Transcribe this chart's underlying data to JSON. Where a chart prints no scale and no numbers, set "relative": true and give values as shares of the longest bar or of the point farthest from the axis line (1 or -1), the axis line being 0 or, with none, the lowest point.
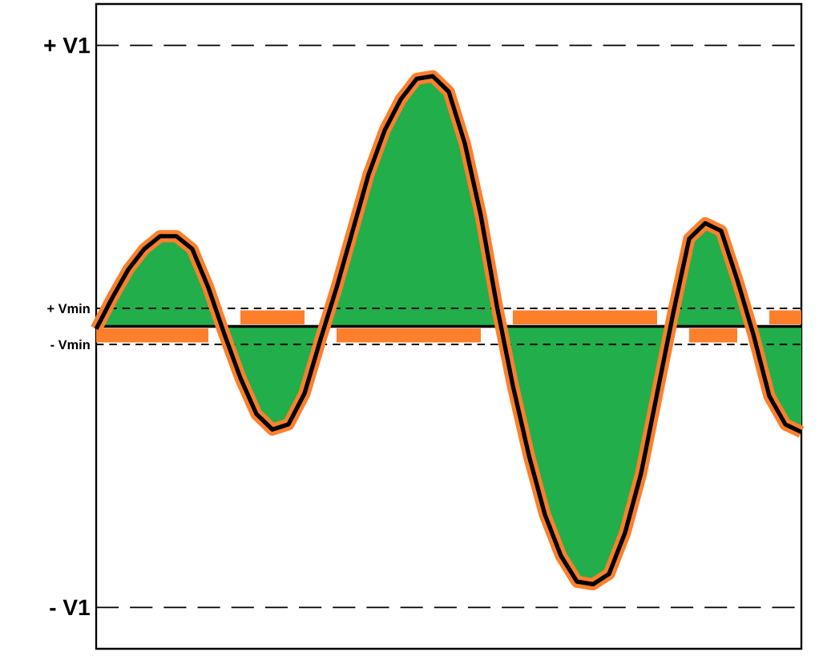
{
  "chart_data": {
    "type": "area",
    "relative": true,
    "categories": [
      null,
      null,
      null,
      null,
      null,
      null,
      null,
      null,
      null,
      null,
      null,
      null,
      null,
      null,
      null,
      null,
      null,
      null,
      null,
      null,
      null,
      null,
      null,
      null,
      null,
      null,
      null,
      null,
      null,
      null,
      null,
      null,
      null,
      null,
      null,
      null,
      null,
      null,
      null,
      null,
      null,
      null,
      null,
      null,
      null
    ],
    "series": [
      {
        "color": "#22ae4a",
        "values": [
          -0.01,
          0.11,
          0.22,
          0.3,
          0.35,
          0.35,
          0.3,
          0.15,
          -0.03,
          -0.2,
          -0.34,
          -0.4,
          -0.38,
          -0.26,
          -0.05,
          0.15,
          0.37,
          0.59,
          0.76,
          0.88,
          0.96,
          0.97,
          0.91,
          0.71,
          0.43,
          0.08,
          -0.23,
          -0.5,
          -0.73,
          -0.89,
          -0.99,
          -1,
          -0.96,
          -0.8,
          -0.57,
          -0.26,
          0.05,
          0.34,
          0.4,
          0.37,
          0.18,
          -0.03,
          -0.27,
          -0.38,
          -0.41
        ]
      },
      {
        "type": "line",
        "color": "#fd7f2c",
        "values": [
          -0.035,
          -0.035,
          -0.035,
          -0.035,
          -0.035,
          -0.035,
          -0.035,
          -0.035,
          null,
          0.035,
          0.035,
          0.035,
          0.035,
          0.035,
          null,
          -0.035,
          -0.035,
          -0.035,
          -0.035,
          -0.035,
          -0.035,
          -0.035,
          -0.035,
          -0.035,
          -0.035,
          null,
          0.035,
          0.035,
          0.035,
          0.035,
          0.035,
          0.035,
          0.035,
          0.035,
          0.035,
          0.035,
          null,
          -0.035,
          -0.035,
          -0.035,
          -0.035,
          null,
          0.035,
          0.035,
          0.035
        ]
      }
    ],
    "tick_labels": false,
    "ref_lines": [
      {
        "axis": "y",
        "value": 1.09,
        "label": "+ V1",
        "line_style": "dashed",
        "color": "#000000"
      },
      {
        "axis": "y",
        "value": 0.07,
        "label": "+ Vmin",
        "line_style": "dashed",
        "color": "#000000"
      },
      {
        "axis": "y",
        "value": -0.07,
        "label": "- Vmin",
        "line_style": "dashed",
        "color": "#000000"
      },
      {
        "axis": "y",
        "value": -1.09,
        "label": "- V1",
        "line_style": "dashed",
        "color": "#000000"
      },
      {
        "axis": "y",
        "value": 0,
        "label": null,
        "line_style": "solid",
        "color": "#000000"
      }
    ]
  }
}
